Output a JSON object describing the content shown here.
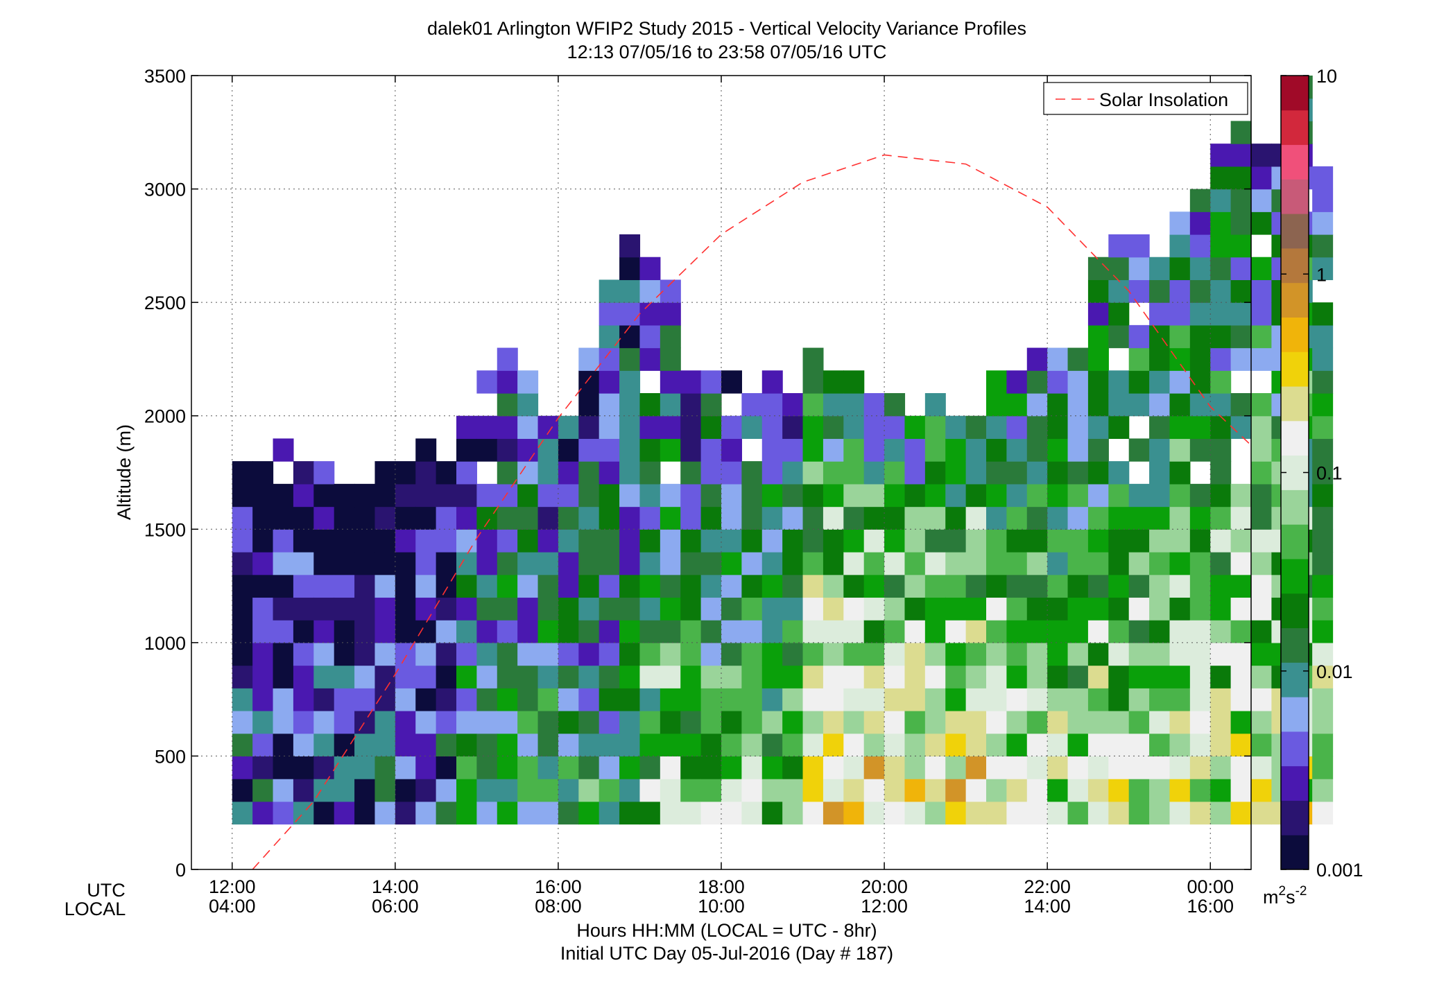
{
  "chart_data": {
    "type": "heatmap",
    "title_line1": "dalek01 Arlington WFIP2 Study 2015 - Vertical Velocity Variance Profiles",
    "title_line2": "12:13 07/05/16 to 23:58 07/05/16  UTC",
    "ylabel": "Altitude (m)",
    "xlabel_line1": "Hours HH:MM  (LOCAL = UTC - 8hr)",
    "xlabel_line2": "Initial UTC Day 05-Jul-2016 (Day # 187)",
    "utc_row_label": "UTC",
    "local_row_label": "LOCAL",
    "xlim_hours_utc": [
      11.5,
      24.5
    ],
    "ylim": [
      0,
      3500
    ],
    "y_ticks": [
      0,
      500,
      1000,
      1500,
      2000,
      2500,
      3000,
      3500
    ],
    "y_tick_labels": [
      "0",
      "500",
      "1000",
      "1500",
      "2000",
      "2500",
      "3000",
      "3500"
    ],
    "x_ticks_hours_utc": [
      12,
      14,
      16,
      18,
      20,
      22,
      24
    ],
    "x_tick_labels_utc": [
      "12:00",
      "14:00",
      "16:00",
      "18:00",
      "20:00",
      "22:00",
      "00:00"
    ],
    "x_tick_labels_local": [
      "04:00",
      "06:00",
      "08:00",
      "10:00",
      "12:00",
      "14:00",
      "16:00"
    ],
    "grid": true,
    "legend": {
      "label": "Solar Insolation",
      "position": "top-right",
      "color": "#ff3030",
      "style": "dashed"
    },
    "colorbar": {
      "scale": "log",
      "range": [
        0.001,
        10
      ],
      "tick_values": [
        0.001,
        0.01,
        0.1,
        1,
        10
      ],
      "tick_labels": [
        "0.001",
        "0.01",
        "0.1",
        "1",
        "10"
      ],
      "unit_base": "m",
      "unit_exp1": "2",
      "unit_mid": "s",
      "unit_exp2": "-2",
      "colors": [
        "#0c0c3c",
        "#2a1470",
        "#4a18b0",
        "#6a5ae0",
        "#8caaf0",
        "#3a9090",
        "#2a7a3a",
        "#0a7a0a",
        "#0aa00a",
        "#4ab44a",
        "#9ad49a",
        "#dcecdc",
        "#f0f0f0",
        "#dcdc90",
        "#f0d20a",
        "#f0b40a",
        "#d29428",
        "#b4783c",
        "#8c6450",
        "#c85a78",
        "#f0507a",
        "#d2283c",
        "#a00a28"
      ]
    },
    "solar_curve": {
      "description_points_hours_utc": [
        12.25,
        13,
        14,
        15,
        16,
        17,
        18,
        19,
        20,
        21,
        22,
        23,
        24,
        24.5
      ],
      "values_altitude_m": [
        0,
        300,
        860,
        1460,
        1990,
        2450,
        2800,
        3030,
        3150,
        3110,
        2920,
        2550,
        2040,
        1870
      ]
    },
    "time_step_hours": 0.25,
    "altitude_step_m": 100,
    "bins_start_hour_utc": 12.125,
    "lowest_bin_altitude_m": 200,
    "max_altitude_per_bin_m": [
      1800,
      1800,
      1900,
      1800,
      1800,
      1700,
      1700,
      1800,
      1800,
      1900,
      1800,
      2000,
      2200,
      2300,
      2200,
      2000,
      2000,
      2300,
      2600,
      2800,
      2700,
      2600,
      2200,
      2200,
      2200,
      2200,
      2200,
      2100,
      2300,
      2200,
      2200,
      2100,
      2100,
      2000,
      2100,
      2100,
      2000,
      2200,
      2200,
      2300,
      2300,
      2300,
      2700,
      2800,
      2800,
      2700,
      2900,
      3000,
      3200,
      3300,
      3200,
      3200,
      3500,
      3100
    ],
    "variance_values_note": "cell variance values (m^2 s^-2, log-scaled 0.001-10) estimated by rising profile: low ~0.001-0.003 early, ~0.01-0.3 after 19:00 UTC",
    "variance_profile_by_period": [
      {
        "hours_utc": [
          12.0,
          14.75
        ],
        "near_surface": 0.005,
        "upper": 0.001
      },
      {
        "hours_utc": [
          14.75,
          17.0
        ],
        "near_surface": 0.02,
        "upper": 0.003
      },
      {
        "hours_utc": [
          17.0,
          19.0
        ],
        "near_surface": 0.05,
        "upper": 0.004
      },
      {
        "hours_utc": [
          19.0,
          21.5
        ],
        "near_surface": 0.25,
        "upper": 0.01
      },
      {
        "hours_utc": [
          21.5,
          24.0
        ],
        "near_surface": 0.12,
        "upper": 0.006
      }
    ]
  }
}
